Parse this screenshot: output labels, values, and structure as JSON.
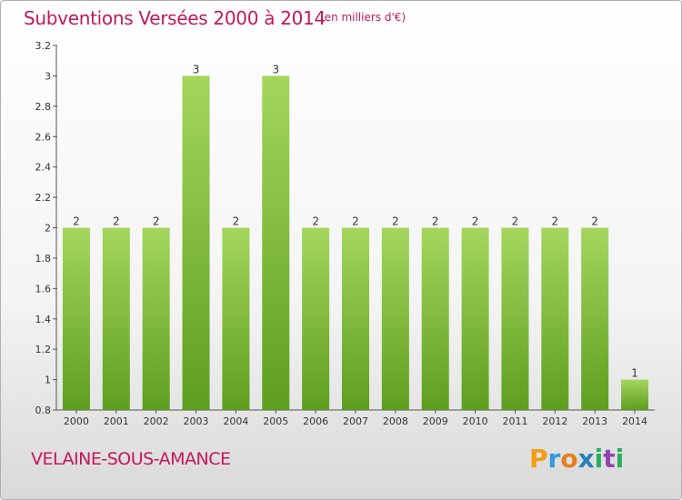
{
  "chart_data": {
    "type": "bar",
    "title": "Subventions Versées 2000 à 2014",
    "unit": "(en milliers d'€)",
    "categories": [
      "2000",
      "2001",
      "2002",
      "2003",
      "2004",
      "2005",
      "2006",
      "2007",
      "2008",
      "2009",
      "2010",
      "2011",
      "2012",
      "2013",
      "2014"
    ],
    "values": [
      2,
      2,
      2,
      3,
      2,
      3,
      2,
      2,
      2,
      2,
      2,
      2,
      2,
      2,
      1
    ],
    "data_labels": [
      "2",
      "2",
      "2",
      "3",
      "2",
      "3",
      "2",
      "2",
      "2",
      "2",
      "2",
      "2",
      "2",
      "2",
      "1"
    ],
    "ylim": [
      0.8,
      3.2
    ],
    "yticks": [
      "0.8",
      "1",
      "1.2",
      "1.4",
      "1.6",
      "1.8",
      "2",
      "2.2",
      "2.4",
      "2.6",
      "2.8",
      "3",
      "3.2"
    ],
    "grid": false,
    "bar_color": "#7dc242"
  },
  "commune": "VELAINE-SOUS-AMANCE",
  "logo": {
    "p": "P",
    "r": "r",
    "o": "o",
    "x": "x",
    "i1": "i",
    "t": "t",
    "i2": "i"
  }
}
